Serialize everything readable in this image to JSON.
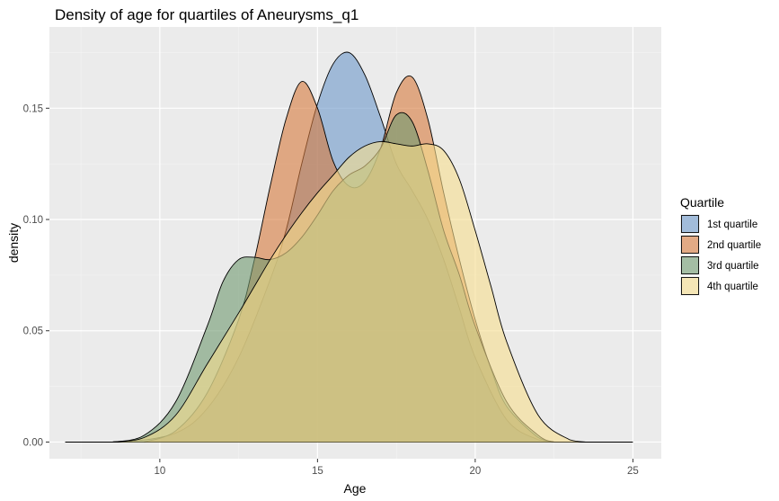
{
  "chart_data": {
    "type": "area",
    "title": "Density of age for quartiles of Aneurysms_q1",
    "xlabel": "Age",
    "ylabel": "density",
    "xlim": [
      6.5,
      25.9
    ],
    "ylim": [
      -0.0075,
      0.1865
    ],
    "x_ticks": [
      10,
      15,
      20,
      25
    ],
    "y_ticks": [
      0.0,
      0.05,
      0.1,
      0.15
    ],
    "y_tick_labels": [
      "0.00",
      "0.05",
      "0.10",
      "0.15"
    ],
    "grid": true,
    "legend": {
      "title": "Quartile",
      "placement": "right"
    },
    "series": [
      {
        "name": "1st quartile",
        "color": "#6d98c9",
        "x": [
          9.0,
          10.5,
          11.5,
          12.5,
          13.5,
          14.0,
          14.5,
          15.0,
          15.5,
          16.0,
          16.5,
          17.0,
          17.5,
          18.0,
          18.5,
          19.0,
          19.5,
          20.0,
          21.0,
          22.0,
          22.5
        ],
        "values": [
          0.0,
          0.004,
          0.015,
          0.038,
          0.073,
          0.095,
          0.125,
          0.152,
          0.17,
          0.175,
          0.165,
          0.146,
          0.125,
          0.113,
          0.1,
          0.082,
          0.06,
          0.038,
          0.01,
          0.001,
          0.0
        ]
      },
      {
        "name": "2nd quartile",
        "color": "#d77a3c",
        "x": [
          9.5,
          10.5,
          11.5,
          12.5,
          13.0,
          13.5,
          14.0,
          14.5,
          15.0,
          15.5,
          16.0,
          16.5,
          17.0,
          17.5,
          18.0,
          18.5,
          19.0,
          19.5,
          20.0,
          20.5,
          21.0,
          22.0,
          22.5
        ],
        "values": [
          0.0,
          0.005,
          0.022,
          0.055,
          0.082,
          0.115,
          0.145,
          0.162,
          0.15,
          0.126,
          0.115,
          0.117,
          0.132,
          0.157,
          0.164,
          0.145,
          0.112,
          0.082,
          0.055,
          0.033,
          0.016,
          0.002,
          0.0
        ]
      },
      {
        "name": "3rd quartile",
        "color": "#6f9a6f",
        "x": [
          8.5,
          9.5,
          10.5,
          11.5,
          12.0,
          12.5,
          13.0,
          13.5,
          14.0,
          14.5,
          15.0,
          15.5,
          16.0,
          16.5,
          17.0,
          17.5,
          18.0,
          18.5,
          19.0,
          19.5,
          20.0,
          21.0,
          22.0,
          22.5
        ],
        "values": [
          0.0,
          0.003,
          0.018,
          0.052,
          0.072,
          0.082,
          0.083,
          0.082,
          0.085,
          0.092,
          0.102,
          0.113,
          0.12,
          0.124,
          0.132,
          0.147,
          0.144,
          0.122,
          0.095,
          0.075,
          0.052,
          0.018,
          0.003,
          0.0
        ]
      },
      {
        "name": "4th quartile",
        "color": "#f7dd8e",
        "x": [
          8.5,
          9.5,
          10.5,
          11.5,
          12.5,
          13.0,
          13.5,
          14.0,
          14.5,
          15.0,
          15.5,
          16.0,
          16.5,
          17.0,
          17.5,
          18.0,
          18.5,
          19.0,
          19.5,
          20.0,
          20.5,
          21.0,
          22.0,
          23.0,
          23.5
        ],
        "values": [
          0.0,
          0.002,
          0.012,
          0.035,
          0.058,
          0.07,
          0.082,
          0.093,
          0.103,
          0.112,
          0.12,
          0.128,
          0.133,
          0.135,
          0.134,
          0.133,
          0.134,
          0.131,
          0.118,
          0.095,
          0.07,
          0.045,
          0.012,
          0.001,
          0.0
        ]
      }
    ]
  }
}
